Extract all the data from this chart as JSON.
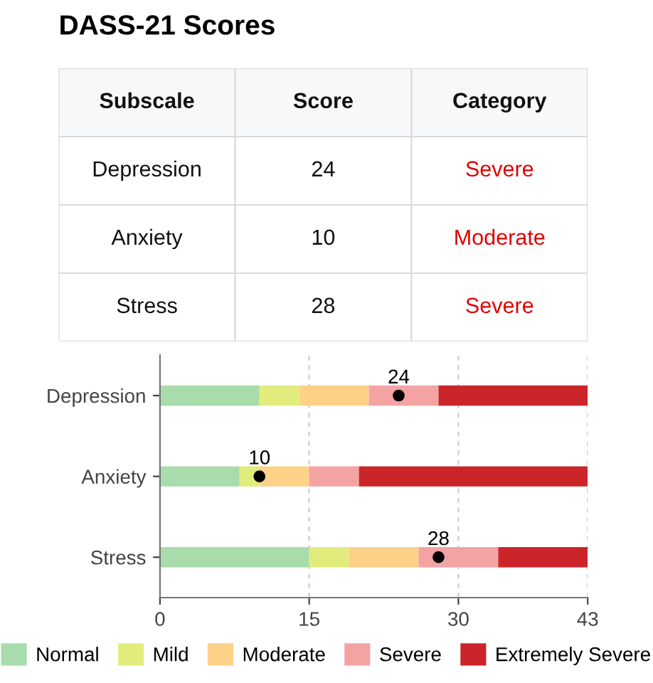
{
  "chart_data": [
    {
      "type": "other",
      "title": "DASS-21 Scores",
      "annotations": [
        "Subscale",
        "Score",
        "Category",
        "Depression",
        "24",
        "Severe",
        "Anxiety",
        "10",
        "Moderate",
        "Stress",
        "28",
        "Severe"
      ]
    },
    {
      "type": "bar",
      "orientation": "horizontal",
      "stacked": true,
      "categories": [
        "Depression",
        "Anxiety",
        "Stress"
      ],
      "series": [
        {
          "name": "Normal",
          "color": "#a8dcab",
          "values": [
            10,
            8,
            15
          ]
        },
        {
          "name": "Mild",
          "color": "#e2ec7c",
          "values": [
            4,
            2,
            4
          ]
        },
        {
          "name": "Moderate",
          "color": "#fdd187",
          "values": [
            7,
            5,
            7
          ]
        },
        {
          "name": "Severe",
          "color": "#f4a3a3",
          "values": [
            7,
            5,
            8
          ]
        },
        {
          "name": "Extremely Severe",
          "color": "#cc2529",
          "values": [
            15,
            23,
            9
          ]
        },
        {
          "type": "scatter",
          "color": "#000000",
          "values": [
            24,
            10,
            28
          ],
          "value_labels": [
            "24",
            "10",
            "28"
          ]
        }
      ],
      "xlim": [
        0,
        43
      ],
      "xticks": [
        0,
        15,
        30,
        43
      ],
      "grid": "x",
      "legend": "bottom",
      "marker": "circle"
    }
  ]
}
